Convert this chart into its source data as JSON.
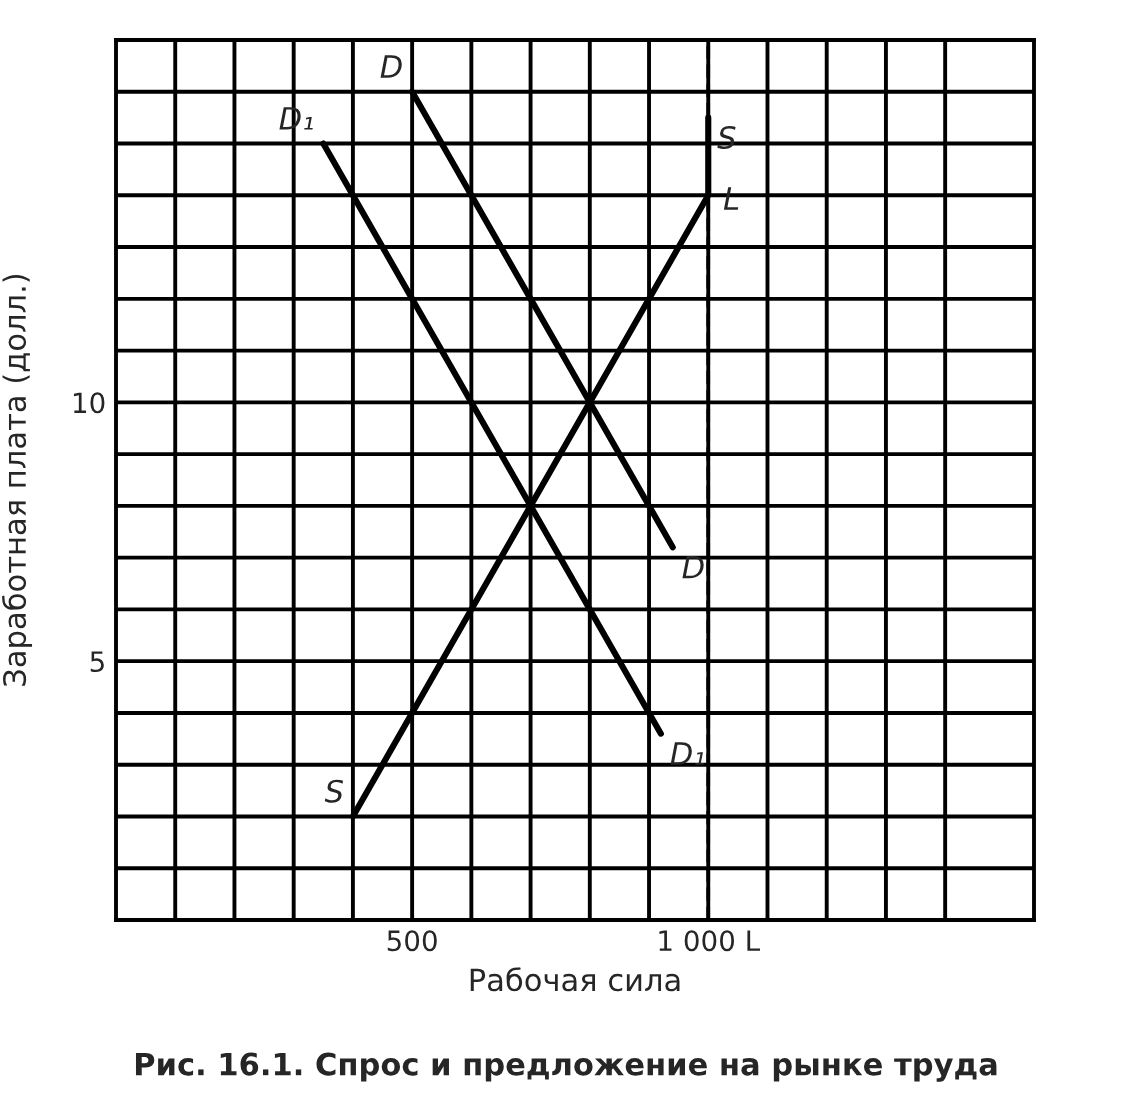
{
  "chart_data": {
    "type": "line",
    "xlabel": "Рабочая сила",
    "ylabel": "Заработная плата (долл.)",
    "annotations": [
      "Рис. 16.1. Спрос и предложение на рынке труда"
    ],
    "xlim": [
      0,
      1550
    ],
    "ylim": [
      0,
      17
    ],
    "xticks": [
      {
        "value": 100,
        "label": null
      },
      {
        "value": 200,
        "label": null
      },
      {
        "value": 300,
        "label": null
      },
      {
        "value": 400,
        "label": null
      },
      500,
      {
        "value": 600,
        "label": null
      },
      {
        "value": 700,
        "label": null
      },
      {
        "value": 800,
        "label": null
      },
      {
        "value": 900,
        "label": null
      },
      {
        "value": 1000,
        "label": "1 000 L"
      },
      {
        "value": 1100,
        "label": null
      },
      {
        "value": 1200,
        "label": null
      },
      {
        "value": 1300,
        "label": null
      },
      {
        "value": 1400,
        "label": null
      }
    ],
    "yticks": [
      {
        "value": 1,
        "label": null
      },
      {
        "value": 2,
        "label": null
      },
      {
        "value": 3,
        "label": null
      },
      {
        "value": 4,
        "label": null
      },
      5,
      {
        "value": 6,
        "label": null
      },
      {
        "value": 7,
        "label": null
      },
      {
        "value": 8,
        "label": null
      },
      {
        "value": 9,
        "label": null
      },
      10,
      {
        "value": 11,
        "label": null
      },
      {
        "value": 12,
        "label": null
      },
      {
        "value": 13,
        "label": null
      },
      {
        "value": 14,
        "label": null
      },
      {
        "value": 15,
        "label": null
      },
      {
        "value": 16,
        "label": null
      }
    ],
    "grid": true,
    "ref_lines": [
      {
        "axis": "x",
        "value": 1000,
        "label": "L",
        "line_style": "dashed",
        "color": "#000000"
      }
    ],
    "series": [
      {
        "name": "D",
        "color": "#000000",
        "x": [
          500,
          940
        ],
        "values": [
          16,
          7.2
        ]
      },
      {
        "name": "D₁",
        "color": "#000000",
        "x": [
          350,
          920
        ],
        "values": [
          15,
          3.6
        ]
      },
      {
        "name": "S",
        "color": "#000000",
        "x": [
          400,
          1000,
          1000
        ],
        "values": [
          2,
          14,
          15.5
        ]
      }
    ]
  }
}
